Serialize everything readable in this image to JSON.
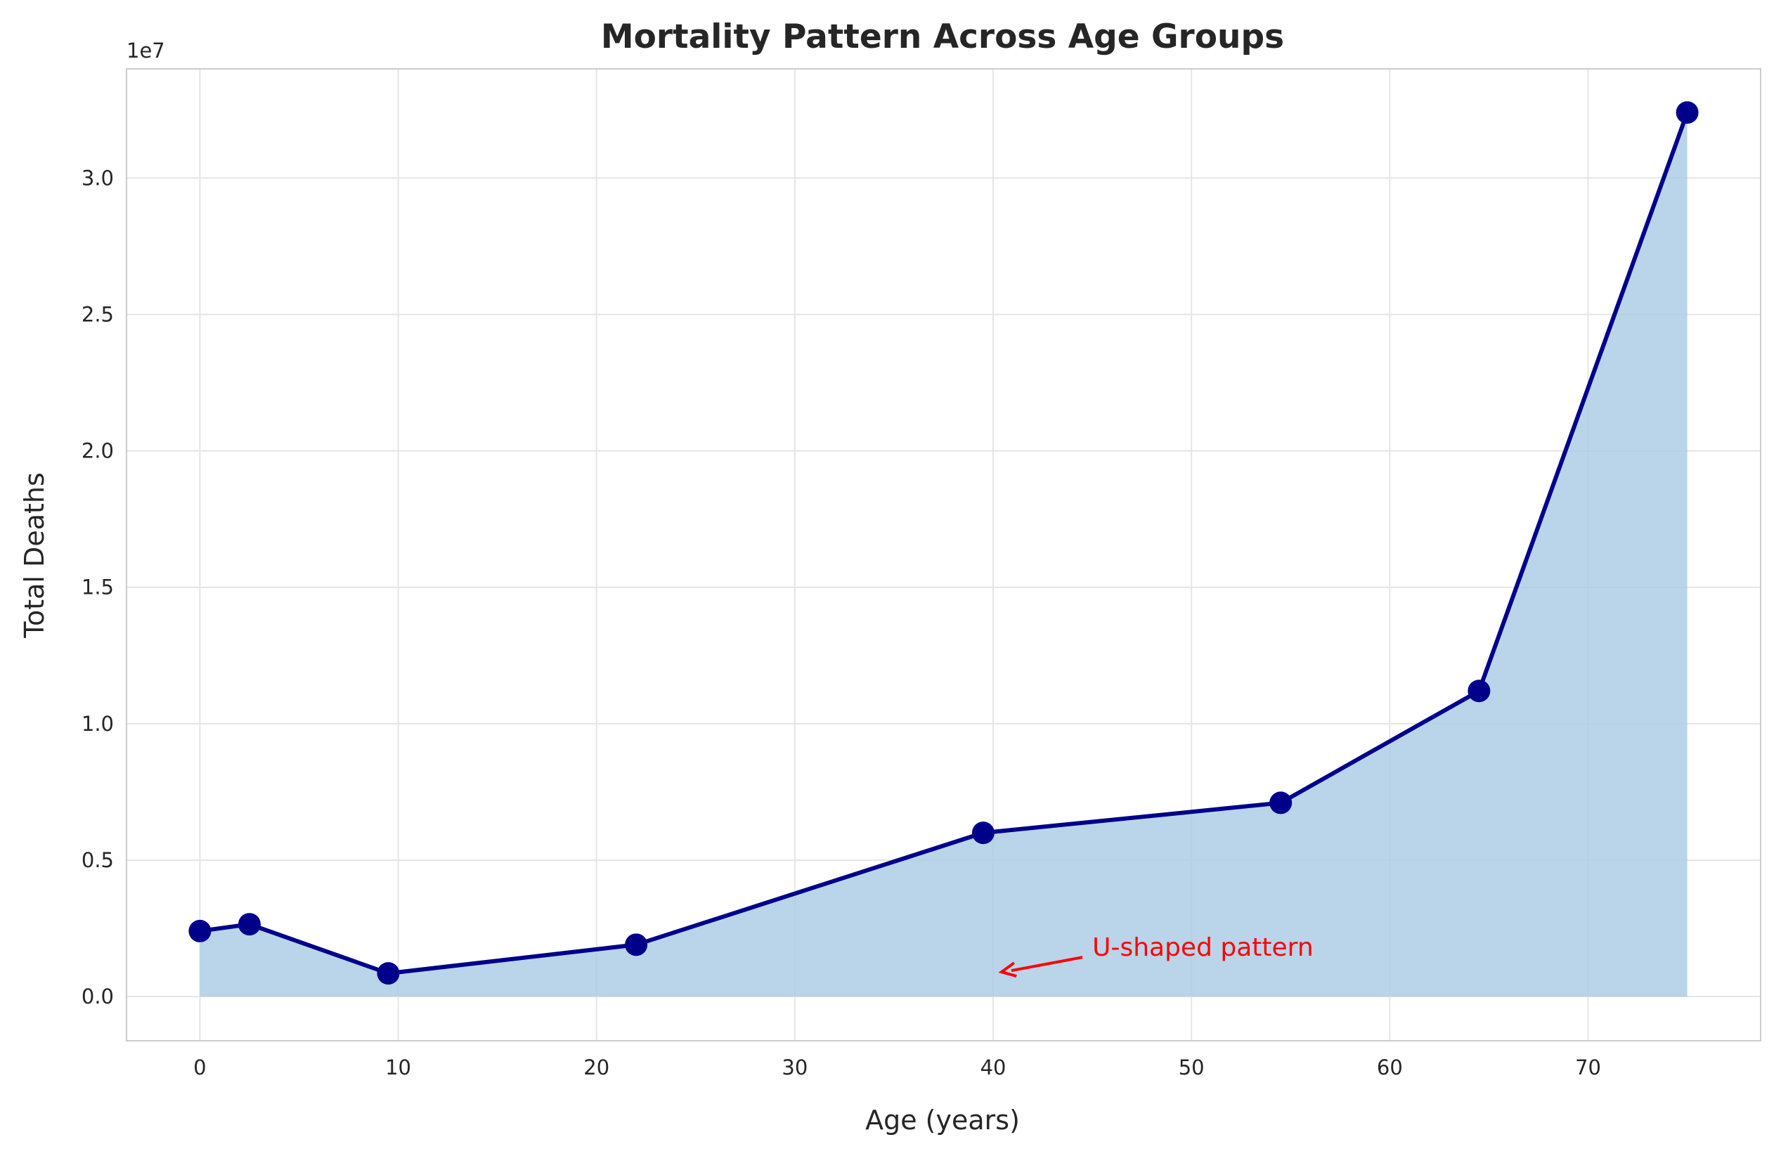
{
  "chart_data": {
    "type": "line",
    "title": "Mortality Pattern Across Age Groups",
    "xlabel": "Age (years)",
    "ylabel": "Total Deaths",
    "y_offset_label": "1e7",
    "xlim": [
      -3.7,
      78.7
    ],
    "ylim": [
      -1620000,
      34000000
    ],
    "x_ticks": [
      0,
      10,
      20,
      30,
      40,
      50,
      60,
      70
    ],
    "x_tick_labels": [
      "0",
      "10",
      "20",
      "30",
      "40",
      "50",
      "60",
      "70"
    ],
    "y_ticks": [
      0,
      5000000,
      10000000,
      15000000,
      20000000,
      25000000,
      30000000
    ],
    "y_tick_labels": [
      "0.0",
      "0.5",
      "1.0",
      "1.5",
      "2.0",
      "2.5",
      "3.0"
    ],
    "grid": true,
    "series": [
      {
        "x": [
          0,
          2.5,
          9.5,
          22,
          39.5,
          54.5,
          64.5,
          75
        ],
        "values": [
          2400000,
          2650000,
          850000,
          1900000,
          6000000,
          7100000,
          11200000,
          32400000
        ]
      }
    ],
    "fill_under": true,
    "annotation": {
      "text": "U-shaped pattern",
      "xy": [
        40,
        900000
      ],
      "xytext": [
        45,
        1800000
      ]
    },
    "colors": {
      "line": "#00008b",
      "fill": "#a9c9e3",
      "annotation": "#ff0000",
      "grid": "#e5e5e5",
      "spine": "#cccccc"
    }
  }
}
